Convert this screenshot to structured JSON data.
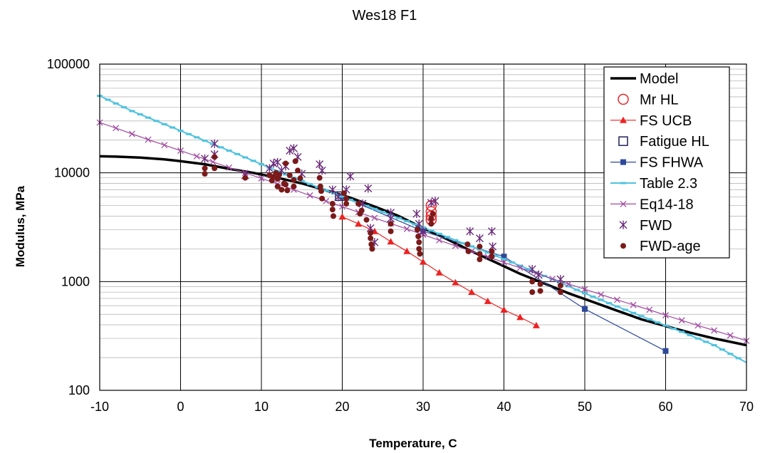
{
  "chart_data": {
    "type": "scatter",
    "title": "Wes18 F1",
    "xlabel": "Temperature, C",
    "ylabel": "Modulus, MPa",
    "xlim": [
      -10,
      70
    ],
    "ylim": [
      100,
      100000
    ],
    "y_scale": "log",
    "grid": true,
    "legend_position": "top-right",
    "x_ticks": [
      "-10",
      "0",
      "10",
      "20",
      "30",
      "40",
      "50",
      "60",
      "70"
    ],
    "y_ticks": [
      "100",
      "1000",
      "10000",
      "100000"
    ],
    "series": [
      {
        "name": "Model",
        "style": "line",
        "color": "#000000",
        "width": 3.5,
        "points": [
          [
            -10,
            14200
          ],
          [
            -8,
            14100
          ],
          [
            -5,
            13800
          ],
          [
            -2,
            13300
          ],
          [
            0,
            12800
          ],
          [
            3,
            12000
          ],
          [
            6,
            10900
          ],
          [
            9,
            10000
          ],
          [
            12,
            9000
          ],
          [
            15,
            8000
          ],
          [
            18,
            6900
          ],
          [
            21,
            5900
          ],
          [
            24,
            4900
          ],
          [
            27,
            4000
          ],
          [
            30,
            3100
          ],
          [
            33,
            2450
          ],
          [
            36,
            1900
          ],
          [
            39,
            1500
          ],
          [
            42,
            1180
          ],
          [
            45,
            960
          ],
          [
            48,
            780
          ],
          [
            51,
            650
          ],
          [
            54,
            540
          ],
          [
            57,
            450
          ],
          [
            60,
            390
          ],
          [
            63,
            340
          ],
          [
            66,
            300
          ],
          [
            70,
            260
          ]
        ]
      },
      {
        "name": "Mr HL",
        "style": "marker",
        "marker": "circle-open",
        "color": "#e8262a",
        "points": [
          [
            31,
            5000
          ],
          [
            31,
            4400
          ],
          [
            31,
            4000
          ],
          [
            31,
            3700
          ]
        ]
      },
      {
        "name": "FS UCB",
        "style": "line-marker",
        "marker": "triangle",
        "color": "#ee2222",
        "width": 1.2,
        "points": [
          [
            20,
            3950
          ],
          [
            22,
            3400
          ],
          [
            24,
            2900
          ],
          [
            26,
            2330
          ],
          [
            28,
            1900
          ],
          [
            30,
            1520
          ],
          [
            32,
            1210
          ],
          [
            34,
            980
          ],
          [
            36,
            800
          ],
          [
            38,
            660
          ],
          [
            40,
            550
          ],
          [
            42,
            470
          ],
          [
            44,
            395
          ]
        ]
      },
      {
        "name": "Fatigue HL",
        "style": "marker",
        "marker": "square-open",
        "color": "#1f1f5c",
        "points": [
          [
            19.7,
            6100
          ]
        ]
      },
      {
        "name": "FS FHWA",
        "style": "line-marker",
        "marker": "square",
        "color": "#2e4999",
        "width": 1.2,
        "points": [
          [
            20,
            6050
          ],
          [
            30,
            2900
          ],
          [
            40,
            1700
          ],
          [
            50,
            560
          ],
          [
            60,
            230
          ]
        ]
      },
      {
        "name": "Table 2.3",
        "style": "line-marker-dense",
        "marker": "dash",
        "color": "#4fc3df",
        "width": 2,
        "points": [
          [
            -10,
            51000
          ],
          [
            -6,
            37000
          ],
          [
            -2,
            28000
          ],
          [
            2,
            21200
          ],
          [
            6,
            16000
          ],
          [
            10,
            12000
          ],
          [
            14,
            9000
          ],
          [
            18,
            6900
          ],
          [
            22,
            5300
          ],
          [
            26,
            4100
          ],
          [
            30,
            3150
          ],
          [
            34,
            2400
          ],
          [
            38,
            1850
          ],
          [
            42,
            1400
          ],
          [
            46,
            1050
          ],
          [
            50,
            780
          ],
          [
            54,
            590
          ],
          [
            58,
            450
          ],
          [
            62,
            345
          ],
          [
            66,
            260
          ],
          [
            70,
            180
          ]
        ]
      },
      {
        "name": "Eq14-18",
        "style": "line-marker",
        "marker": "x",
        "color": "#a24da2",
        "width": 1.2,
        "points": [
          [
            -10,
            29000
          ],
          [
            -8,
            25800
          ],
          [
            -6,
            22800
          ],
          [
            -4,
            20200
          ],
          [
            -2,
            18000
          ],
          [
            0,
            16000
          ],
          [
            2,
            14200
          ],
          [
            4,
            12600
          ],
          [
            6,
            11200
          ],
          [
            8,
            10000
          ],
          [
            10,
            8900
          ],
          [
            12,
            7900
          ],
          [
            14,
            7000
          ],
          [
            16,
            6200
          ],
          [
            18,
            5500
          ],
          [
            20,
            4900
          ],
          [
            22,
            4350
          ],
          [
            24,
            3850
          ],
          [
            26,
            3420
          ],
          [
            28,
            3050
          ],
          [
            30,
            2700
          ],
          [
            32,
            2400
          ],
          [
            34,
            2130
          ],
          [
            36,
            1900
          ],
          [
            38,
            1690
          ],
          [
            40,
            1500
          ],
          [
            42,
            1340
          ],
          [
            44,
            1190
          ],
          [
            46,
            1060
          ],
          [
            48,
            950
          ],
          [
            50,
            850
          ],
          [
            52,
            760
          ],
          [
            54,
            680
          ],
          [
            56,
            610
          ],
          [
            58,
            550
          ],
          [
            60,
            490
          ],
          [
            62,
            440
          ],
          [
            64,
            395
          ],
          [
            66,
            355
          ],
          [
            68,
            320
          ],
          [
            70,
            285
          ]
        ]
      },
      {
        "name": "FWD",
        "style": "marker",
        "marker": "asterisk",
        "color": "#6a2a7a",
        "points": [
          [
            3,
            13500
          ],
          [
            4.2,
            18500
          ],
          [
            4.2,
            14800
          ],
          [
            8,
            9500
          ],
          [
            11,
            11000
          ],
          [
            11.5,
            12200
          ],
          [
            12,
            12500
          ],
          [
            12,
            9500
          ],
          [
            12.5,
            10500
          ],
          [
            13,
            11500
          ],
          [
            13.5,
            16000
          ],
          [
            14,
            16800
          ],
          [
            14.5,
            14000
          ],
          [
            15,
            9800
          ],
          [
            17.2,
            12000
          ],
          [
            17.5,
            10500
          ],
          [
            18.8,
            7000
          ],
          [
            19.5,
            6000
          ],
          [
            20.5,
            7000
          ],
          [
            21,
            9300
          ],
          [
            22.5,
            5200
          ],
          [
            23.2,
            7200
          ],
          [
            23.5,
            3100
          ],
          [
            24,
            2300
          ],
          [
            26,
            4300
          ],
          [
            26,
            3800
          ],
          [
            29.2,
            4200
          ],
          [
            29.5,
            3400
          ],
          [
            30,
            2900
          ],
          [
            31,
            5300
          ],
          [
            31.5,
            5500
          ],
          [
            35.8,
            2900
          ],
          [
            37,
            2500
          ],
          [
            38.5,
            2900
          ],
          [
            38.6,
            2100
          ],
          [
            43.5,
            1300
          ],
          [
            44.3,
            1150
          ],
          [
            47,
            1050
          ]
        ]
      },
      {
        "name": "FWD-age",
        "style": "marker",
        "marker": "dot",
        "color": "#7a1a1a",
        "points": [
          [
            3,
            11000
          ],
          [
            3,
            9800
          ],
          [
            4.2,
            14000
          ],
          [
            4.2,
            11000
          ],
          [
            8,
            9000
          ],
          [
            11,
            9500
          ],
          [
            11.3,
            8500
          ],
          [
            11.5,
            9200
          ],
          [
            11.8,
            10000
          ],
          [
            12,
            7500
          ],
          [
            12,
            8800
          ],
          [
            12.2,
            9600
          ],
          [
            12.5,
            7000
          ],
          [
            12.8,
            8000
          ],
          [
            13,
            12200
          ],
          [
            13,
            7800
          ],
          [
            13.2,
            6900
          ],
          [
            13.5,
            9500
          ],
          [
            14,
            8600
          ],
          [
            14,
            7500
          ],
          [
            14.2,
            12800
          ],
          [
            14.5,
            10500
          ],
          [
            14.8,
            8900
          ],
          [
            17.2,
            9000
          ],
          [
            17.3,
            7500
          ],
          [
            17.4,
            6800
          ],
          [
            17.5,
            5800
          ],
          [
            18.8,
            5200
          ],
          [
            18.8,
            4600
          ],
          [
            18.9,
            4000
          ],
          [
            20.2,
            6500
          ],
          [
            20.5,
            5800
          ],
          [
            20.5,
            5200
          ],
          [
            22,
            5200
          ],
          [
            22.2,
            4200
          ],
          [
            22.4,
            4500
          ],
          [
            23,
            3700
          ],
          [
            23.5,
            2800
          ],
          [
            23.5,
            2500
          ],
          [
            23.6,
            2200
          ],
          [
            23.7,
            2000
          ],
          [
            26,
            3400
          ],
          [
            26,
            2900
          ],
          [
            29.3,
            3000
          ],
          [
            29.4,
            2600
          ],
          [
            29.5,
            2300
          ],
          [
            29.5,
            2000
          ],
          [
            29.6,
            1800
          ],
          [
            31,
            3800
          ],
          [
            31,
            3400
          ],
          [
            31.2,
            4200
          ],
          [
            35.5,
            2200
          ],
          [
            35.6,
            1900
          ],
          [
            37,
            2100
          ],
          [
            37,
            1800
          ],
          [
            37,
            1600
          ],
          [
            38.5,
            1700
          ],
          [
            38.5,
            1900
          ],
          [
            43.5,
            1000
          ],
          [
            43.5,
            800
          ],
          [
            44.5,
            950
          ],
          [
            44.5,
            820
          ],
          [
            47,
            920
          ],
          [
            47,
            800
          ]
        ]
      }
    ]
  }
}
